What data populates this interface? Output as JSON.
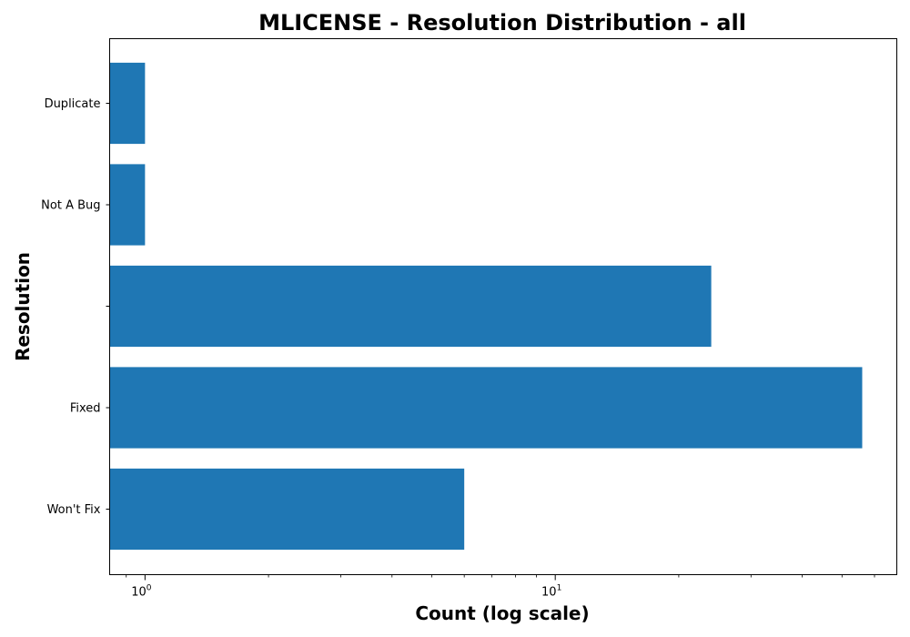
{
  "chart_data": {
    "type": "bar",
    "orientation": "horizontal",
    "title": "MLICENSE - Resolution Distribution - all",
    "xlabel": "Count (log scale)",
    "ylabel": "Resolution",
    "x_scale": "log",
    "xlim": [
      0.82,
      68
    ],
    "x_ticks": [
      {
        "value": 1,
        "base": "10",
        "exp": "0"
      },
      {
        "value": 10,
        "base": "10",
        "exp": "1"
      }
    ],
    "categories": [
      "Won't Fix",
      "Fixed",
      "",
      "Not A Bug",
      "Duplicate"
    ],
    "values": [
      6,
      56,
      24,
      1,
      1
    ],
    "bar_color": "#1f77b4",
    "grid": false,
    "legend": false
  }
}
